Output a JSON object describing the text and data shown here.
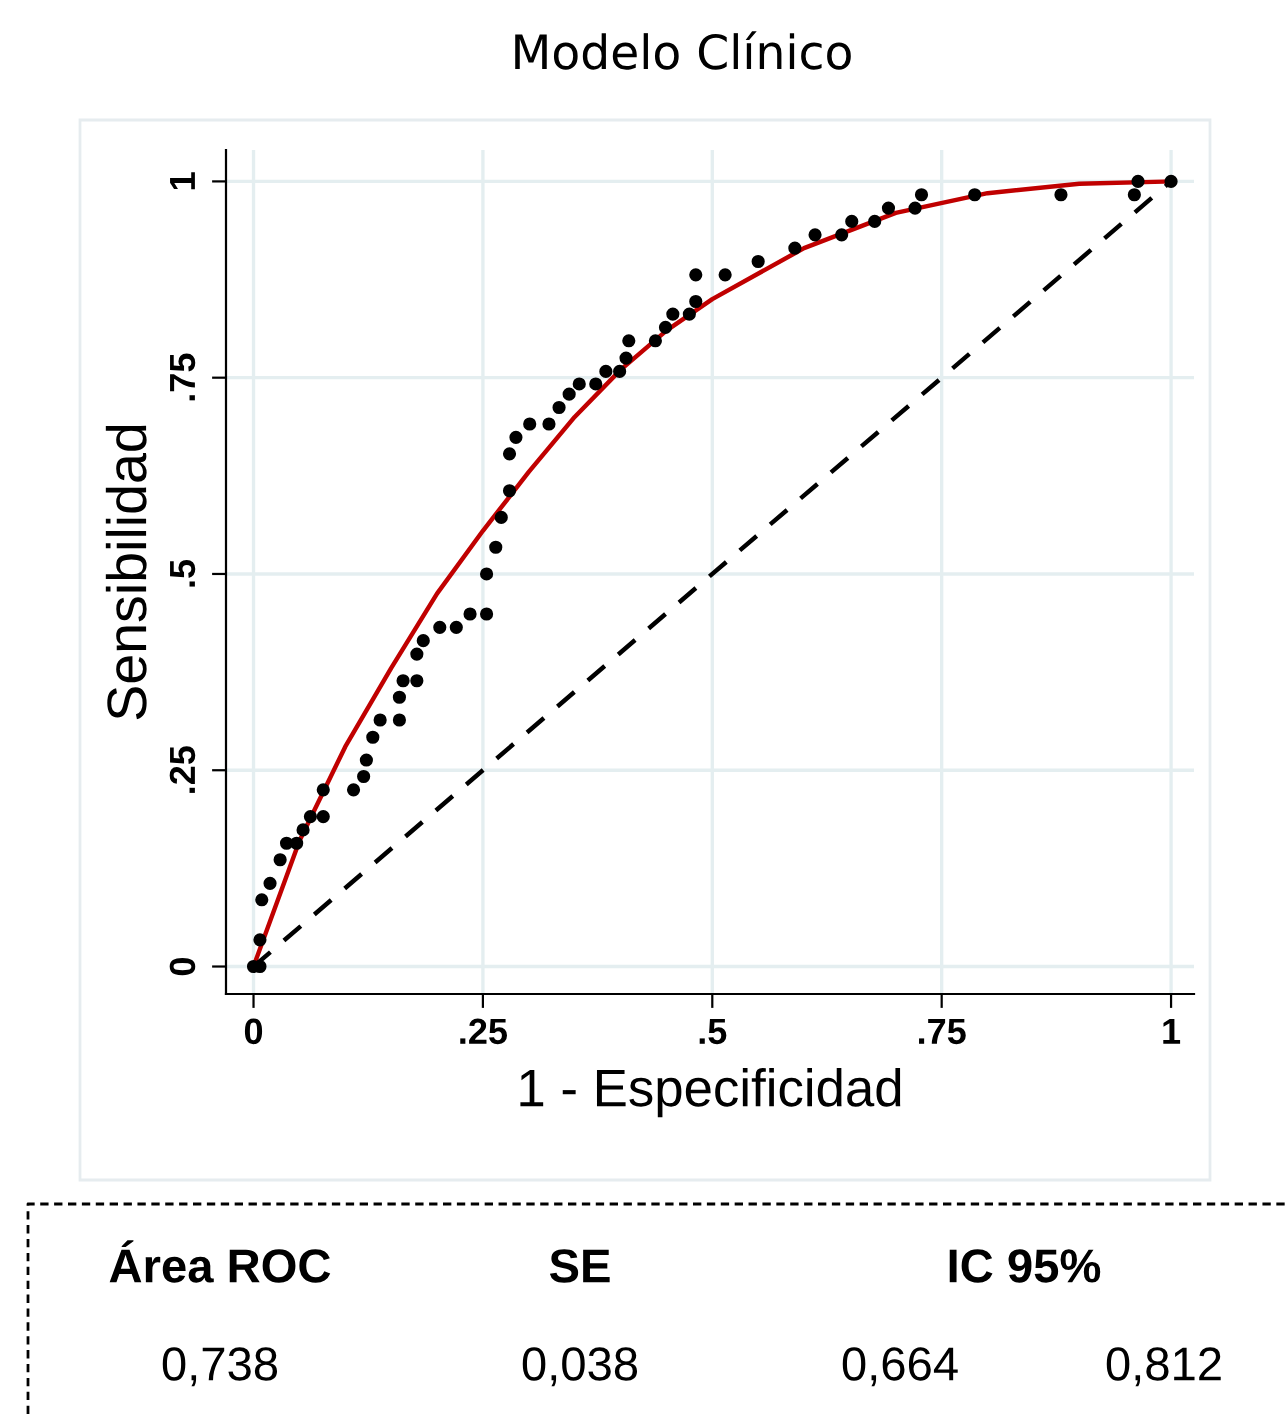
{
  "chart_data": {
    "type": "scatter",
    "title": "Modelo Clínico",
    "xlabel": "1 - Especificidad",
    "ylabel": "Sensibilidad",
    "xlim": [
      -0.03,
      1.025
    ],
    "ylim": [
      -0.035,
      1.04
    ],
    "xticks": [
      0,
      {
        "value": 0.25,
        "label": ".25"
      },
      {
        "value": 0.5,
        "label": ".5"
      },
      {
        "value": 0.75,
        "label": ".75"
      },
      1
    ],
    "yticks": [
      0,
      {
        "value": 0.25,
        "label": ".25"
      },
      {
        "value": 0.5,
        "label": ".5"
      },
      {
        "value": 0.75,
        "label": ".75"
      },
      1
    ],
    "grid": true,
    "legend": false,
    "series": [
      {
        "color": "#000000",
        "marker": "circle",
        "x": [
          0,
          0.007,
          0.007,
          0.009,
          0.018,
          0.029,
          0.036,
          0.047,
          0.054,
          0.062,
          0.076,
          0.076,
          0.109,
          0.12,
          0.123,
          0.13,
          0.138,
          0.159,
          0.159,
          0.163,
          0.178,
          0.178,
          0.185,
          0.203,
          0.221,
          0.236,
          0.254,
          0.254,
          0.264,
          0.27,
          0.279,
          0.279,
          0.286,
          0.301,
          0.322,
          0.333,
          0.344,
          0.355,
          0.373,
          0.384,
          0.399,
          0.406,
          0.409,
          0.438,
          0.449,
          0.457,
          0.475,
          0.482,
          0.482,
          0.514,
          0.55,
          0.59,
          0.612,
          0.641,
          0.652,
          0.677,
          0.692,
          0.721,
          0.728,
          0.786,
          0.88,
          0.96,
          0.964,
          1
        ],
        "values": [
          0,
          0,
          0.034,
          0.085,
          0.106,
          0.136,
          0.157,
          0.157,
          0.174,
          0.191,
          0.191,
          0.225,
          0.225,
          0.242,
          0.263,
          0.292,
          0.314,
          0.314,
          0.343,
          0.364,
          0.364,
          0.398,
          0.415,
          0.432,
          0.432,
          0.449,
          0.449,
          0.5,
          0.534,
          0.572,
          0.606,
          0.653,
          0.674,
          0.691,
          0.691,
          0.712,
          0.729,
          0.742,
          0.742,
          0.758,
          0.758,
          0.775,
          0.797,
          0.797,
          0.814,
          0.831,
          0.831,
          0.847,
          0.881,
          0.881,
          0.898,
          0.915,
          0.932,
          0.932,
          0.949,
          0.949,
          0.966,
          0.966,
          0.983,
          0.983,
          0.983,
          0.983,
          1,
          1
        ]
      },
      {
        "type": "line",
        "color": "#c00000",
        "line_style": "solid",
        "marker": "none",
        "x": [
          0,
          0.05,
          0.1,
          0.15,
          0.2,
          0.25,
          0.3,
          0.35,
          0.4,
          0.45,
          0.5,
          0.6,
          0.7,
          0.8,
          0.9,
          1
        ],
        "values": [
          0,
          0.16,
          0.28,
          0.38,
          0.475,
          0.555,
          0.63,
          0.7,
          0.76,
          0.81,
          0.85,
          0.915,
          0.96,
          0.985,
          0.997,
          1
        ]
      },
      {
        "type": "line",
        "color": "#000000",
        "line_style": "dashed",
        "marker": "none",
        "x": [
          0,
          1
        ],
        "values": [
          0,
          1
        ]
      }
    ],
    "annotations": [
      "Área ROC",
      "SE",
      "IC 95%",
      "0,738",
      "0,038",
      "0,664",
      "0,812"
    ]
  }
}
